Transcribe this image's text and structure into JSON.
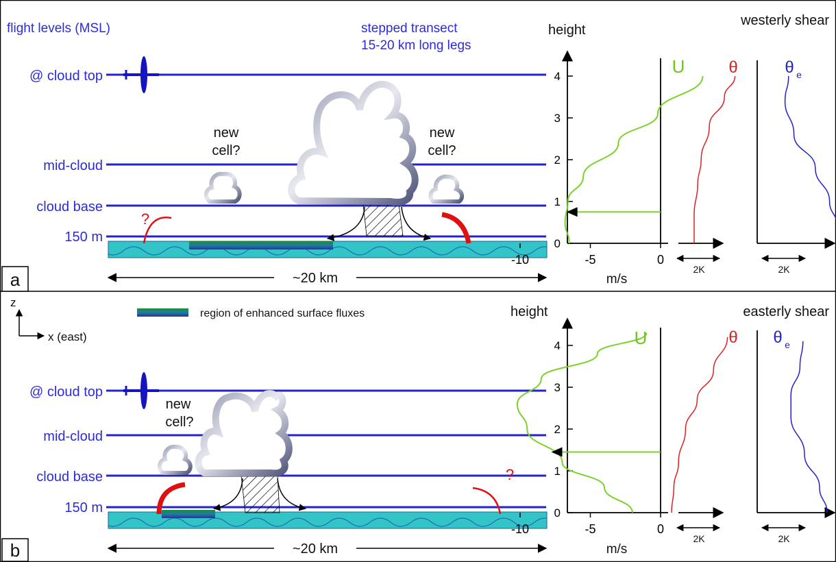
{
  "levels": {
    "cloud_top": "@ cloud top",
    "mid_cloud": "mid-cloud",
    "cloud_base": "cloud base",
    "low": "150 m"
  },
  "panel_a": {
    "label": "a",
    "flight_levels_title": "flight levels (MSL)",
    "transect_note_1": "stepped transect",
    "transect_note_2": "15-20 km long legs",
    "new_cell_1": "new",
    "new_cell_2": "cell?",
    "question": "?",
    "distance": "~20 km",
    "shear": "westerly shear",
    "height_label": "height",
    "units": "m/s",
    "u_label": "U",
    "theta_label": "θ",
    "thetae_label": "θ",
    "thetae_sub": "e",
    "scale": "2K"
  },
  "panel_b": {
    "label": "b",
    "z_label": "z",
    "x_label": "x (east)",
    "legend": "region of enhanced surface fluxes",
    "question": "?",
    "distance": "~20 km",
    "shear": "easterly shear",
    "height_label": "height",
    "units": "m/s",
    "u_label": "U",
    "theta_label": "θ",
    "thetae_label": "θ",
    "thetae_sub": "e",
    "scale": "2K"
  },
  "chart_data": [
    {
      "type": "line",
      "title": "westerly shear",
      "ylabel": "height",
      "xlabel": "m/s",
      "y_ticks": [
        0,
        1,
        2,
        3,
        4
      ],
      "x_ticks": [
        -10,
        -5,
        0
      ],
      "ylim": [
        0,
        4
      ],
      "series": [
        {
          "name": "U",
          "x": [
            -6.5,
            -6.8,
            -6.6,
            -5.5,
            -3.0,
            -0.2,
            3.0
          ],
          "y": [
            0,
            0.5,
            1.0,
            1.6,
            2.4,
            3.1,
            4.0
          ]
        },
        {
          "name": "θ",
          "values_K": [
            0,
            0.0,
            0.3,
            0.6,
            1.3,
            2.6,
            3.5
          ],
          "y": [
            0,
            0.7,
            1.4,
            2.0,
            2.8,
            3.5,
            4.0
          ]
        },
        {
          "name": "θe",
          "values_K": [
            7.2,
            7.1,
            6.2,
            4.6,
            2.2,
            1.2,
            1.6
          ],
          "y": [
            0,
            0.4,
            1.0,
            1.8,
            2.6,
            3.4,
            4.0
          ]
        }
      ],
      "u_arrow_height": 0.75
    },
    {
      "type": "line",
      "title": "easterly shear",
      "ylabel": "height",
      "xlabel": "m/s",
      "y_ticks": [
        0,
        1,
        2,
        3,
        4
      ],
      "x_ticks": [
        -10,
        -5,
        0
      ],
      "ylim": [
        0,
        4
      ],
      "series": [
        {
          "name": "U",
          "x": [
            -2.0,
            -4.0,
            -7.0,
            -9.5,
            -10.2,
            -8.5,
            -4.5,
            -1.0
          ],
          "y": [
            0,
            0.6,
            1.2,
            2.0,
            2.6,
            3.2,
            3.8,
            4.3
          ]
        },
        {
          "name": "θ",
          "values_K": [
            0,
            0.2,
            0.6,
            1.2,
            2.2,
            3.6,
            4.8
          ],
          "y": [
            0,
            0.6,
            1.2,
            2.0,
            2.7,
            3.4,
            4.2
          ]
        },
        {
          "name": "θe",
          "values_K": [
            7.0,
            6.0,
            4.0,
            2.2,
            2.2,
            3.4,
            3.8
          ],
          "y": [
            0,
            0.6,
            1.4,
            2.3,
            2.8,
            3.5,
            4.1
          ]
        }
      ],
      "u_arrow_height": 1.45
    }
  ]
}
